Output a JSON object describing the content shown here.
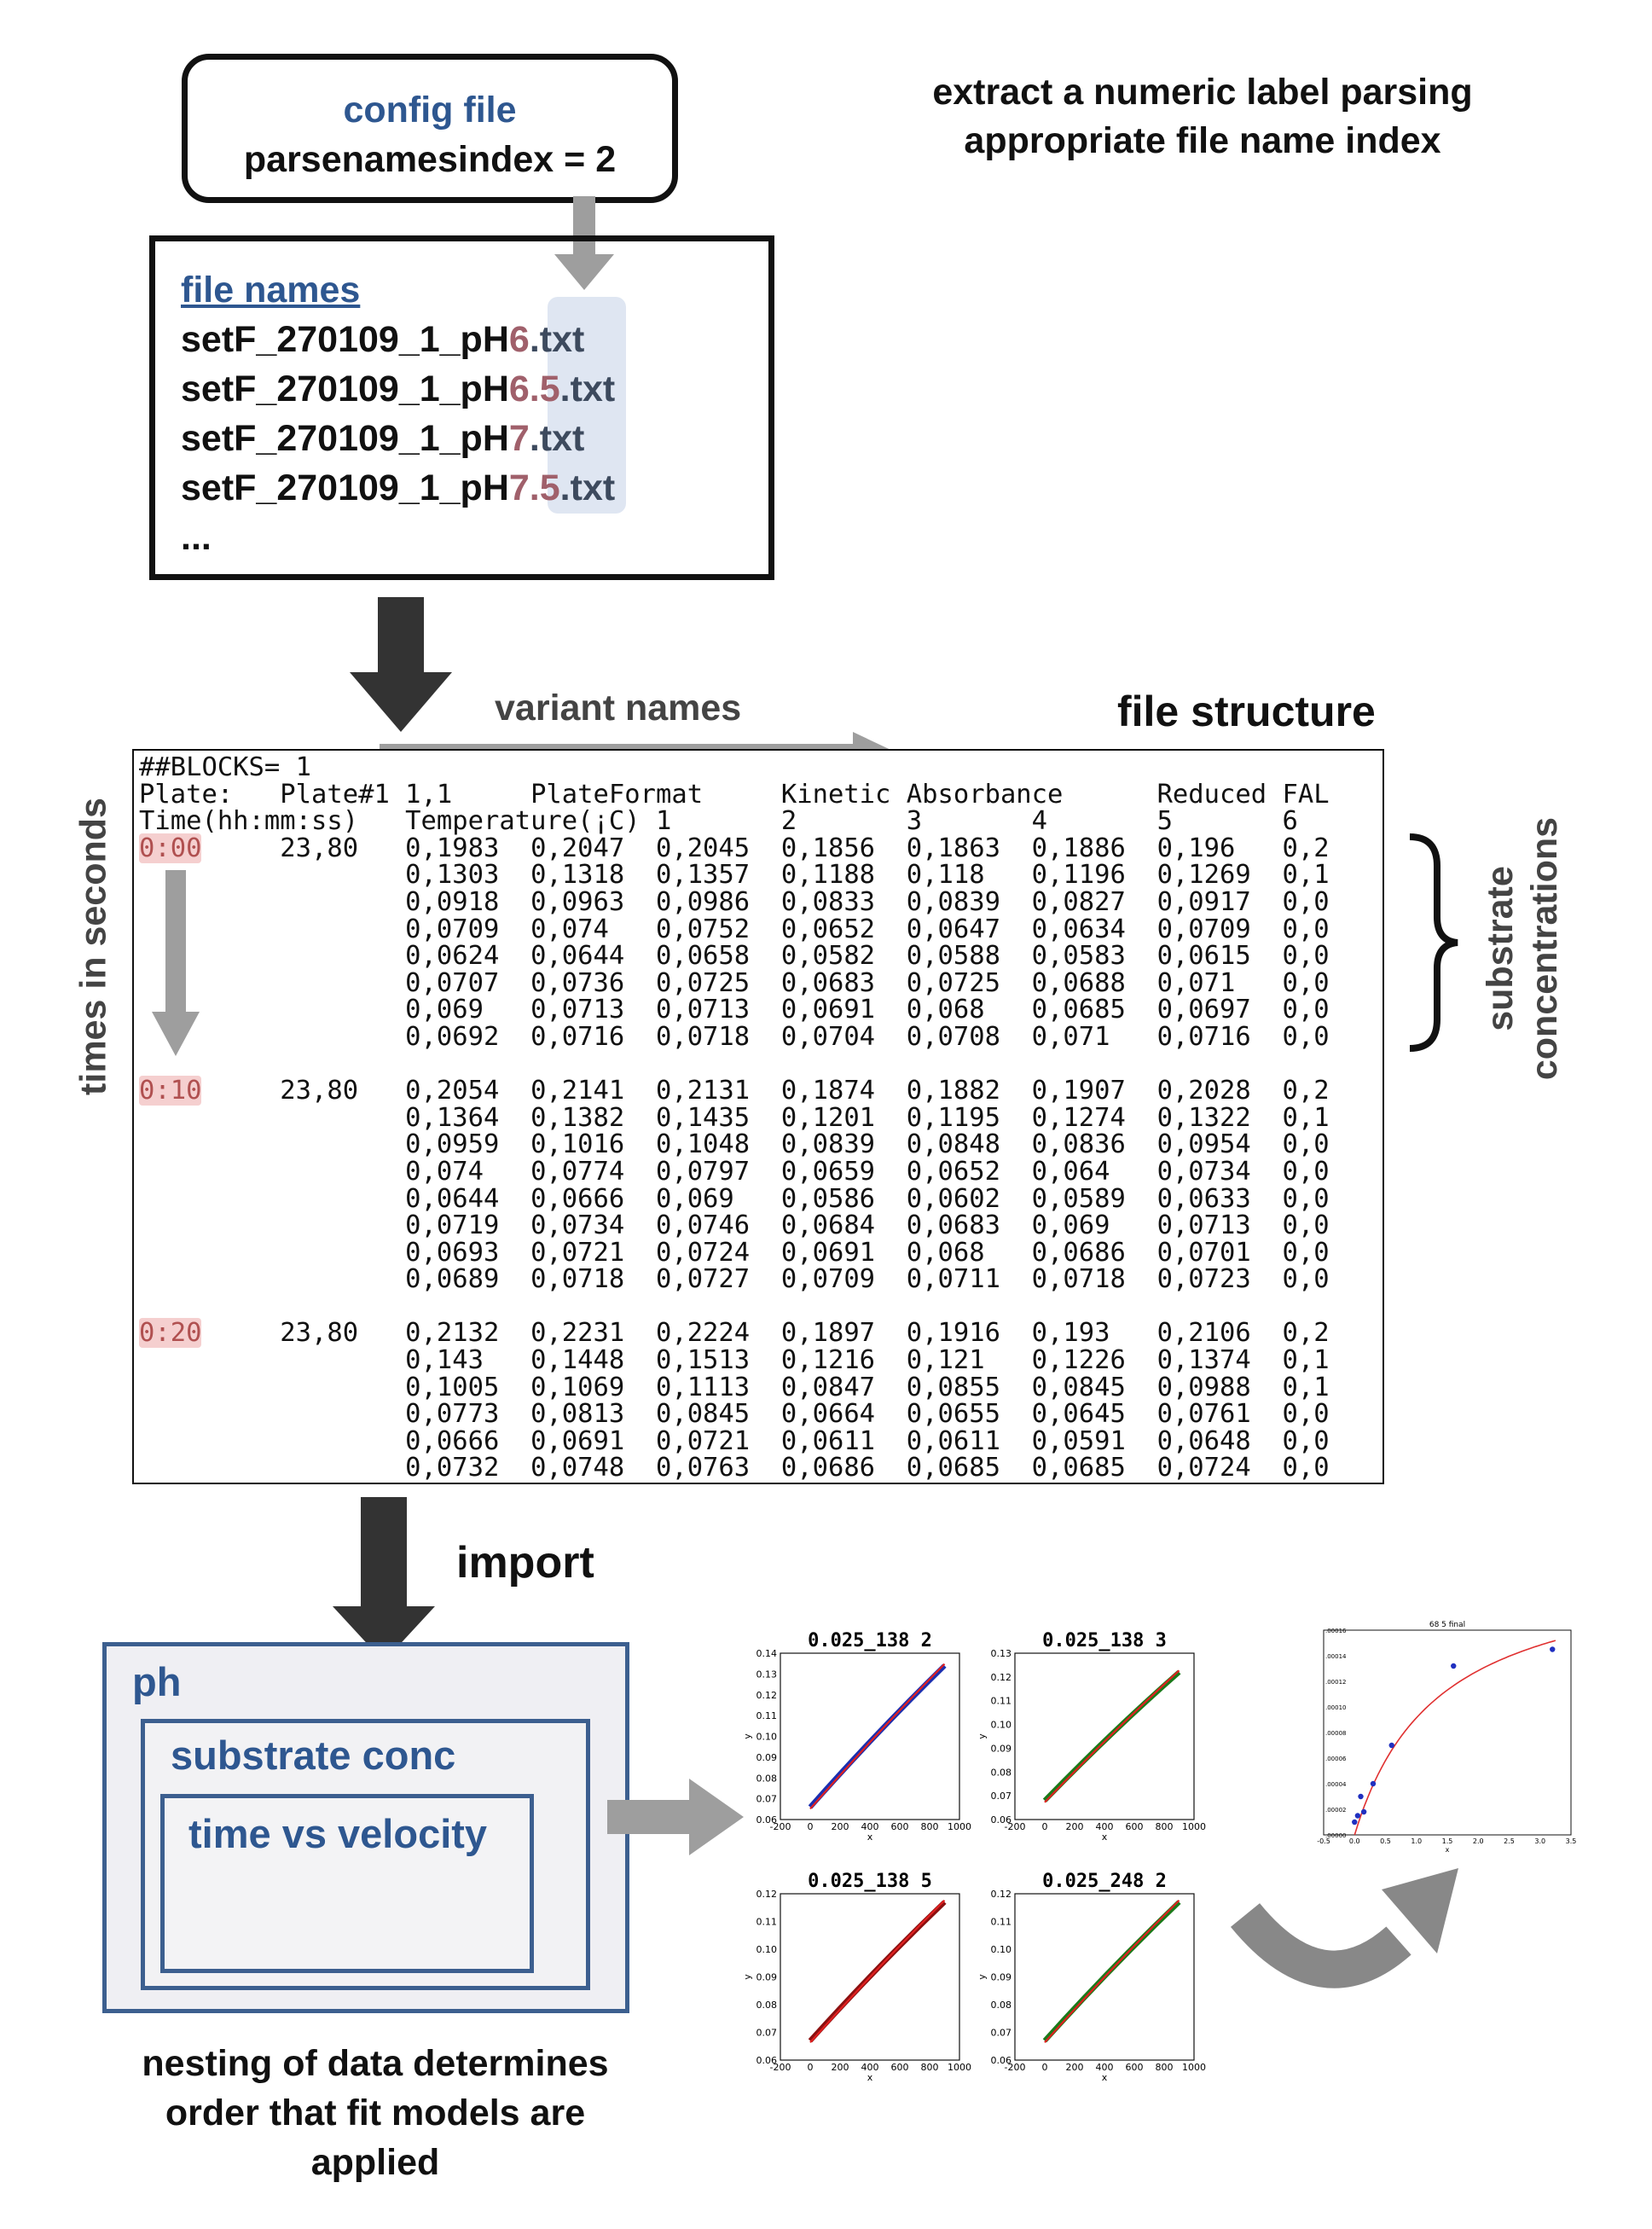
{
  "config": {
    "title": "config file",
    "line": "parsenamesindex = 2"
  },
  "note": {
    "line1": "extract a numeric label parsing",
    "line2": "appropriate file name index"
  },
  "files": {
    "heading": "file names",
    "items": [
      {
        "prefix": "setF_270109_1_pH",
        "value": "6",
        "ext": ".txt"
      },
      {
        "prefix": "setF_270109_1_pH",
        "value": "6.5",
        "ext": ".txt"
      },
      {
        "prefix": "setF_270109_1_pH",
        "value": "7",
        "ext": ".txt"
      },
      {
        "prefix": "setF_270109_1_pH",
        "value": "7.5",
        "ext": ".txt"
      }
    ],
    "ellipsis": "..."
  },
  "labels": {
    "variant_names": "variant names",
    "file_structure": "file structure",
    "times_in_seconds": "times in seconds",
    "substrate_line1": "substrate",
    "substrate_line2": "concentrations",
    "import": "import"
  },
  "file_data": {
    "header_lines": [
      "##BLOCKS= 1",
      "Plate:   Plate#1 1,1     PlateFormat     Kinetic Absorbance      Reduced FAL",
      "Time(hh:mm:ss)   Temperature(¡C) 1       2       3       4       5       6"
    ],
    "blocks": [
      {
        "time": "0:00",
        "temp": "23,80",
        "rows": [
          "0,1983  0,2047  0,2045  0,1856  0,1863  0,1886  0,196   0,2",
          "0,1303  0,1318  0,1357  0,1188  0,118   0,1196  0,1269  0,1",
          "0,0918  0,0963  0,0986  0,0833  0,0839  0,0827  0,0917  0,0",
          "0,0709  0,074   0,0752  0,0652  0,0647  0,0634  0,0709  0,0",
          "0,0624  0,0644  0,0658  0,0582  0,0588  0,0583  0,0615  0,0",
          "0,0707  0,0736  0,0725  0,0683  0,0725  0,0688  0,071   0,0",
          "0,069   0,0713  0,0713  0,0691  0,068   0,0685  0,0697  0,0",
          "0,0692  0,0716  0,0718  0,0704  0,0708  0,071   0,0716  0,0"
        ]
      },
      {
        "time": "0:10",
        "temp": "23,80",
        "rows": [
          "0,2054  0,2141  0,2131  0,1874  0,1882  0,1907  0,2028  0,2",
          "0,1364  0,1382  0,1435  0,1201  0,1195  0,1274  0,1322  0,1",
          "0,0959  0,1016  0,1048  0,0839  0,0848  0,0836  0,0954  0,0",
          "0,074   0,0774  0,0797  0,0659  0,0652  0,064   0,0734  0,0",
          "0,0644  0,0666  0,069   0,0586  0,0602  0,0589  0,0633  0,0",
          "0,0719  0,0734  0,0746  0,0684  0,0683  0,069   0,0713  0,0",
          "0,0693  0,0721  0,0724  0,0691  0,068   0,0686  0,0701  0,0",
          "0,0689  0,0718  0,0727  0,0709  0,0711  0,0718  0,0723  0,0"
        ]
      },
      {
        "time": "0:20",
        "temp": "23,80",
        "rows": [
          "0,2132  0,2231  0,2224  0,1897  0,1916  0,193   0,2106  0,2",
          "0,143   0,1448  0,1513  0,1216  0,121   0,1226  0,1374  0,1",
          "0,1005  0,1069  0,1113  0,0847  0,0855  0,0845  0,0988  0,1",
          "0,0773  0,0813  0,0845  0,0664  0,0655  0,0645  0,0761  0,0",
          "0,0666  0,0691  0,0721  0,0611  0,0611  0,0591  0,0648  0,0",
          "0,0732  0,0748  0,0763  0,0686  0,0685  0,0685  0,0724  0,0"
        ]
      }
    ]
  },
  "nesting": {
    "outer": "ph",
    "middle": "substrate conc",
    "inner": "time vs velocity",
    "caption_lines": [
      "nesting of data determines",
      "order that fit models are",
      "applied"
    ]
  },
  "colors": {
    "accent_blue": "#2e5790",
    "highlight_red": "#a0606b",
    "arrow_dark": "#333333",
    "arrow_gray": "#9e9e9e"
  },
  "small_plots": [
    {
      "title": "0.025_138 2",
      "yticks": [
        "0.14",
        "0.13",
        "0.12",
        "0.11",
        "0.10",
        "0.09",
        "0.08",
        "0.07",
        "0.06"
      ],
      "xticks": [
        "-200",
        "0",
        "200",
        "400",
        "600",
        "800",
        "1000"
      ],
      "xlabel": "x",
      "ylabel": "y",
      "ylim": [
        0.06,
        0.14
      ],
      "xlim": [
        -200,
        1000
      ],
      "line_start": [
        0,
        0.066
      ],
      "line_end": [
        900,
        0.134
      ],
      "data_color": "#1a2fb0"
    },
    {
      "title": "0.025_138 3",
      "yticks": [
        "0.13",
        "0.12",
        "0.11",
        "0.10",
        "0.09",
        "0.08",
        "0.07",
        "0.06"
      ],
      "xticks": [
        "-200",
        "0",
        "200",
        "400",
        "600",
        "800",
        "1000"
      ],
      "xlabel": "x",
      "ylabel": "y",
      "ylim": [
        0.06,
        0.13
      ],
      "xlim": [
        -200,
        1000
      ],
      "line_start": [
        0,
        0.068
      ],
      "line_end": [
        900,
        0.122
      ],
      "data_color": "#1a7a1a"
    },
    {
      "title": "0.025_138 5",
      "yticks": [
        "0.12",
        "0.11",
        "0.10",
        "0.09",
        "0.08",
        "0.07",
        "0.06"
      ],
      "xticks": [
        "-200",
        "0",
        "200",
        "400",
        "600",
        "800",
        "1000"
      ],
      "xlabel": "x",
      "ylabel": "y",
      "ylim": [
        0.06,
        0.12
      ],
      "xlim": [
        -200,
        1000
      ],
      "line_start": [
        0,
        0.067
      ],
      "line_end": [
        900,
        0.117
      ],
      "data_color": "#8b1010"
    },
    {
      "title": "0.025_248 2",
      "yticks": [
        "0.12",
        "0.11",
        "0.10",
        "0.09",
        "0.08",
        "0.07",
        "0.06"
      ],
      "xticks": [
        "-200",
        "0",
        "200",
        "400",
        "600",
        "800",
        "1000"
      ],
      "xlabel": "x",
      "ylabel": "y",
      "ylim": [
        0.06,
        0.12
      ],
      "xlim": [
        -200,
        1000
      ],
      "line_start": [
        0,
        0.067
      ],
      "line_end": [
        900,
        0.117
      ],
      "data_color": "#1a7a1a"
    }
  ],
  "chart_data": {
    "type": "scatter",
    "title": "68 5 final",
    "xlabel": "x",
    "ylabel": "",
    "xlim": [
      -0.5,
      3.5
    ],
    "ylim": [
      0.0,
      0.00016
    ],
    "xticks": [
      "-0.5",
      "0.0",
      "0.5",
      "1.0",
      "1.5",
      "2.0",
      "2.5",
      "3.0",
      "3.5"
    ],
    "yticks": [
      ".00000",
      ".00002",
      ".00004",
      ".00006",
      ".00008",
      ".00010",
      ".00012",
      ".00014",
      ".00016"
    ],
    "series": [
      {
        "x": [
          0.0,
          0.05,
          0.1,
          0.15,
          0.3,
          0.6,
          1.6,
          3.2
        ],
        "y": [
          1e-05,
          1.5e-05,
          3e-05,
          1.8e-05,
          4e-05,
          7e-05,
          0.000132,
          0.000145
        ],
        "color": "#2030c0"
      }
    ],
    "fit": {
      "vmax": 0.000215,
      "km": 1.35,
      "color": "#e03030"
    }
  }
}
